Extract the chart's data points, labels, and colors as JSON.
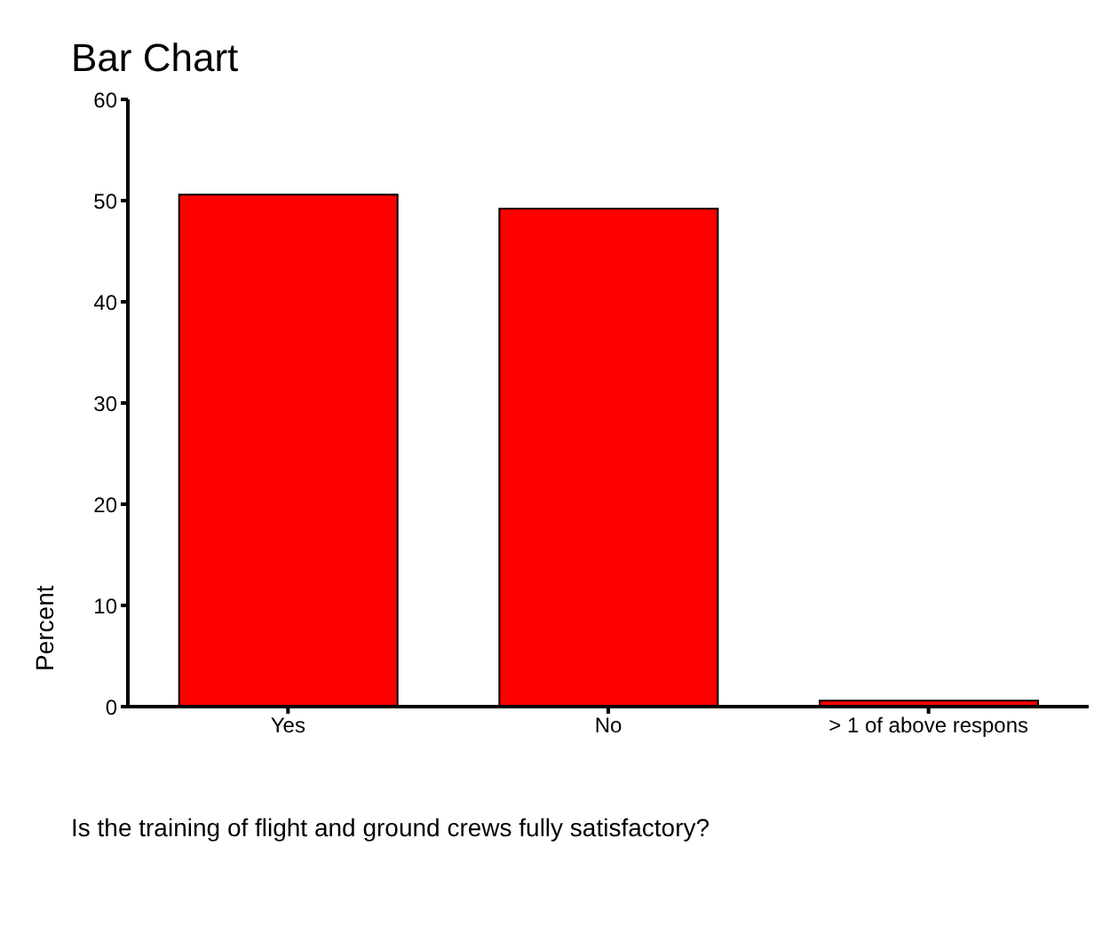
{
  "chart_data": {
    "type": "bar",
    "title": "Bar Chart",
    "xlabel": "Is the training of flight and ground crews fully satisfactory?",
    "ylabel": "Percent",
    "categories": [
      "Yes",
      "No",
      "> 1 of above respons"
    ],
    "values": [
      50.6,
      49.2,
      0.6
    ],
    "color": "#ff0000",
    "ylim": [
      0,
      60
    ],
    "yticks": [
      0,
      10,
      20,
      30,
      40,
      50,
      60
    ],
    "grid": false,
    "legend": false
  }
}
